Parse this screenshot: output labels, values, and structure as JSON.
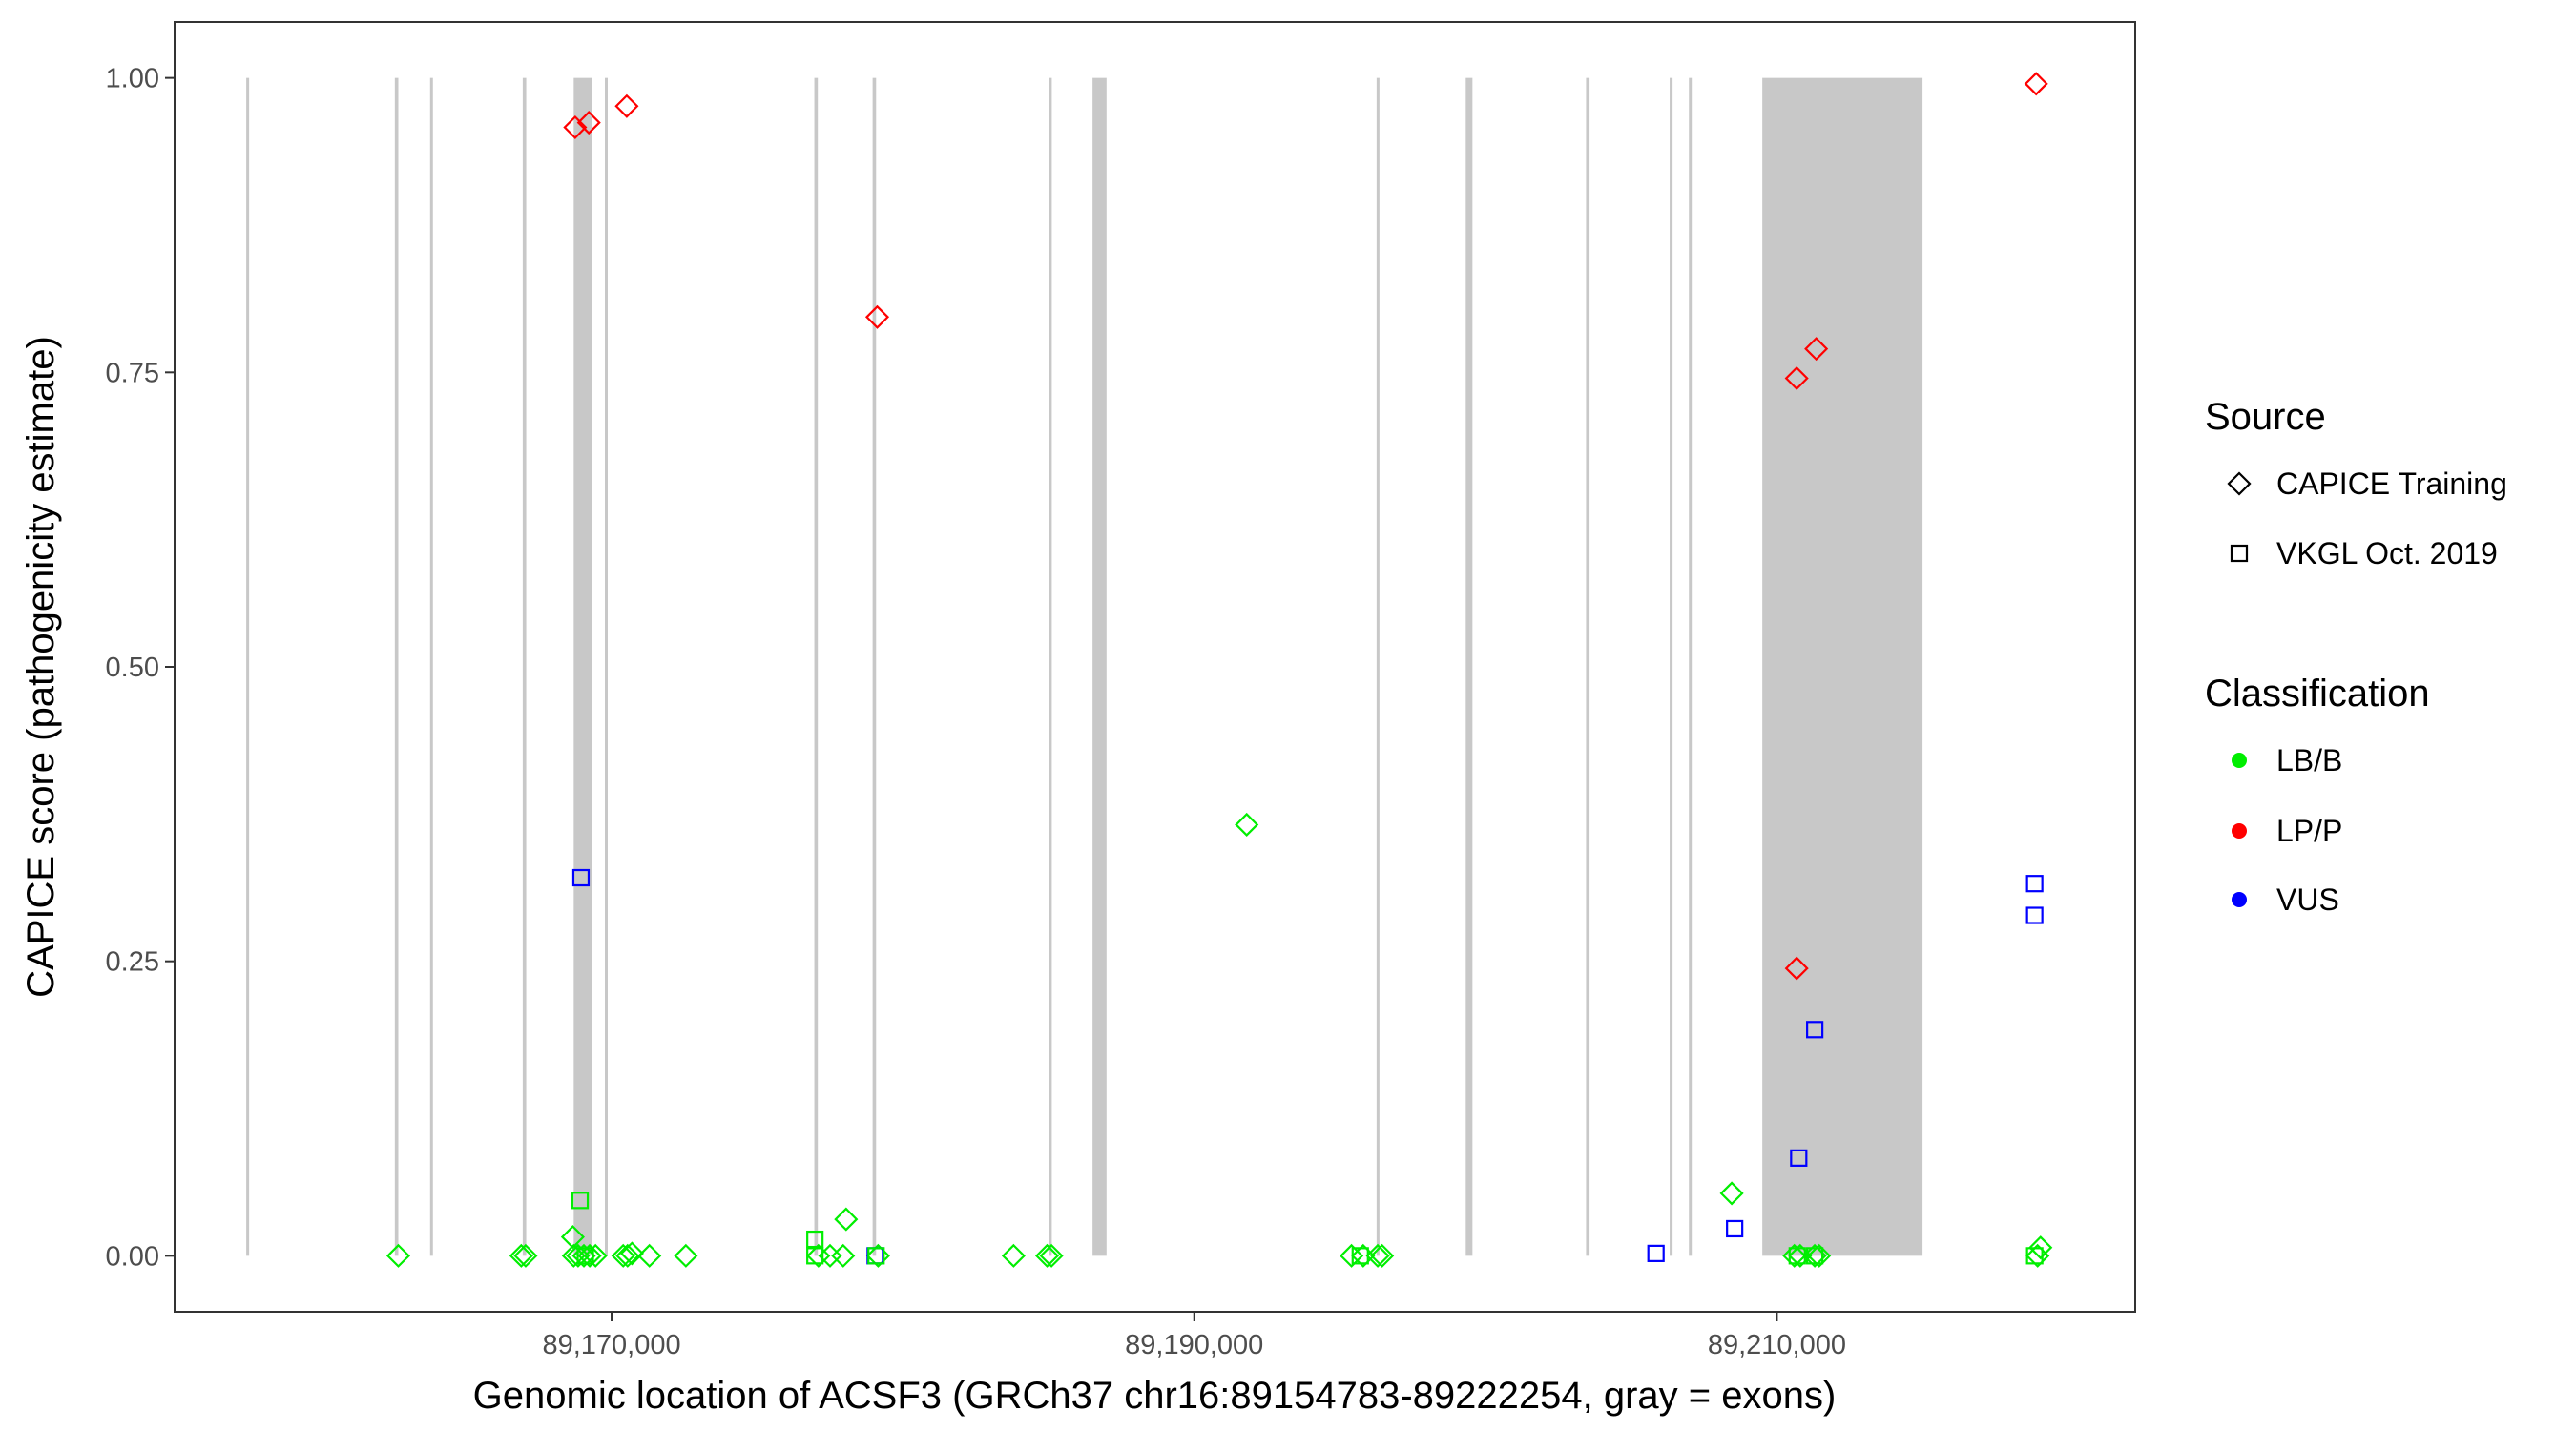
{
  "chart_data": {
    "type": "scatter",
    "xlabel": "Genomic location of ACSF3 (GRCh37 chr16:89154783-89222254, gray = exons)",
    "ylabel": "CAPICE score (pathogenicity estimate)",
    "xlim": [
      89155000,
      89222300
    ],
    "ylim": [
      -0.0475,
      1.0475
    ],
    "x_ticks": [
      89170000,
      89190000,
      89210000
    ],
    "x_tick_labels": [
      "89,170,000",
      "89,190,000",
      "89,210,000"
    ],
    "y_ticks": [
      0,
      0.25,
      0.5,
      0.75,
      1.0
    ],
    "y_tick_labels": [
      "0.00",
      "0.25",
      "0.50",
      "0.75",
      "1.00"
    ],
    "grid": false,
    "exons": [
      {
        "start": 89157460,
        "end": 89157540
      },
      {
        "start": 89162560,
        "end": 89162680
      },
      {
        "start": 89163770,
        "end": 89163850
      },
      {
        "start": 89166950,
        "end": 89167070
      },
      {
        "start": 89168700,
        "end": 89169340
      },
      {
        "start": 89169770,
        "end": 89169850
      },
      {
        "start": 89176960,
        "end": 89177080
      },
      {
        "start": 89178960,
        "end": 89179080
      },
      {
        "start": 89185010,
        "end": 89185110
      },
      {
        "start": 89186510,
        "end": 89186990
      },
      {
        "start": 89196260,
        "end": 89196340
      },
      {
        "start": 89199320,
        "end": 89199550
      },
      {
        "start": 89203450,
        "end": 89203570
      },
      {
        "start": 89206320,
        "end": 89206420
      },
      {
        "start": 89206980,
        "end": 89207070
      },
      {
        "start": 89209500,
        "end": 89215000
      }
    ],
    "legend": {
      "position": "right",
      "source_title": "Source",
      "source_items": [
        {
          "label": "CAPICE Training",
          "shape": "diamond"
        },
        {
          "label": "VKGL Oct. 2019",
          "shape": "square"
        }
      ],
      "classification_title": "Classification",
      "classification_items": [
        {
          "label": "LB/B",
          "color": "#00ee00"
        },
        {
          "label": "LP/P",
          "color": "#ff0000"
        },
        {
          "label": "VUS",
          "color": "#0000ff"
        }
      ]
    },
    "colors": {
      "LB/B": "#00ee00",
      "LP/P": "#ff0000",
      "VUS": "#0000ff"
    },
    "series": [
      {
        "source": "CAPICE Training",
        "classification": "LP/P",
        "points": [
          [
            89168750,
            0.958
          ],
          [
            89169220,
            0.962
          ],
          [
            89170520,
            0.976
          ],
          [
            89179120,
            0.797
          ],
          [
            89210680,
            0.745
          ],
          [
            89211350,
            0.77
          ],
          [
            89210680,
            0.244
          ],
          [
            89218900,
            0.995
          ]
        ]
      },
      {
        "source": "CAPICE Training",
        "classification": "LB/B",
        "points": [
          [
            89162680,
            0.0
          ],
          [
            89166900,
            0.0
          ],
          [
            89167050,
            0.0
          ],
          [
            89168670,
            0.016
          ],
          [
            89168700,
            0.0
          ],
          [
            89168850,
            0.0
          ],
          [
            89169050,
            0.0
          ],
          [
            89169250,
            0.0
          ],
          [
            89169450,
            0.0
          ],
          [
            89170400,
            0.0
          ],
          [
            89170550,
            0.0
          ],
          [
            89170700,
            0.002
          ],
          [
            89171300,
            0.0
          ],
          [
            89172550,
            0.0
          ],
          [
            89177100,
            0.0
          ],
          [
            89177500,
            0.0
          ],
          [
            89177950,
            0.0
          ],
          [
            89178050,
            0.031
          ],
          [
            89179150,
            0.0
          ],
          [
            89183800,
            0.0
          ],
          [
            89184950,
            0.0
          ],
          [
            89185100,
            0.0
          ],
          [
            89191800,
            0.366
          ],
          [
            89195400,
            0.0
          ],
          [
            89195800,
            0.0
          ],
          [
            89196300,
            0.0
          ],
          [
            89196450,
            0.0
          ],
          [
            89208450,
            0.053
          ],
          [
            89210600,
            0.0
          ],
          [
            89210800,
            0.0
          ],
          [
            89211300,
            0.0
          ],
          [
            89211450,
            0.0
          ],
          [
            89218950,
            0.0
          ],
          [
            89219050,
            0.007
          ]
        ]
      },
      {
        "source": "VKGL Oct. 2019",
        "classification": "VUS",
        "points": [
          [
            89168950,
            0.321
          ],
          [
            89179050,
            0.0
          ],
          [
            89205850,
            0.002
          ],
          [
            89208550,
            0.023
          ],
          [
            89210750,
            0.083
          ],
          [
            89211300,
            0.192
          ],
          [
            89218850,
            0.316
          ],
          [
            89218850,
            0.289
          ]
        ]
      },
      {
        "source": "VKGL Oct. 2019",
        "classification": "LB/B",
        "points": [
          [
            89168920,
            0.047
          ],
          [
            89169100,
            0.0
          ],
          [
            89176980,
            0.014
          ],
          [
            89176980,
            0.0
          ],
          [
            89179080,
            0.0
          ],
          [
            89195700,
            0.0
          ],
          [
            89210700,
            0.0
          ],
          [
            89211300,
            0.0
          ],
          [
            89218850,
            0.0
          ]
        ]
      }
    ]
  }
}
